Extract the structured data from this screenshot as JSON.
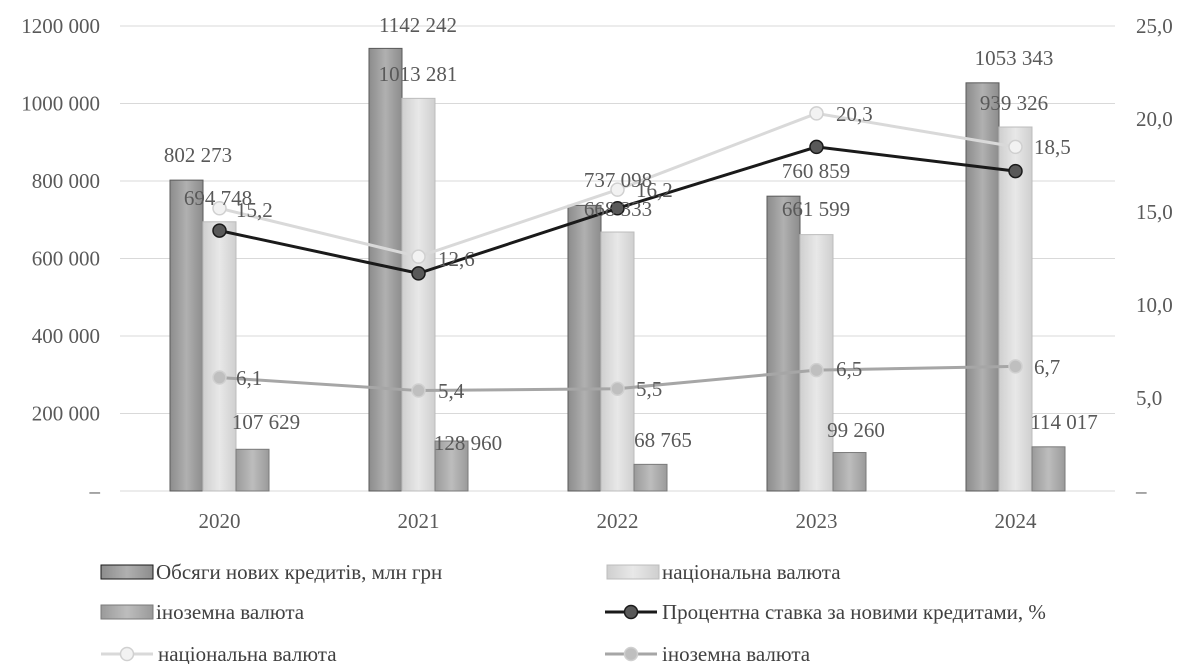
{
  "chart_data": {
    "type": "bar",
    "categories": [
      "2020",
      "2021",
      "2022",
      "2023",
      "2024"
    ],
    "bar_series": [
      {
        "name": "Обсяги нових кредитів, млн грн",
        "values": [
          802273,
          1142242,
          737098,
          760859,
          1053343
        ],
        "labels": [
          "802 273",
          "1142 242",
          "737 098",
          "760 859",
          "1053 343"
        ],
        "color": "#9a9a9a"
      },
      {
        "name": "національна валюта",
        "values": [
          694748,
          1013281,
          668333,
          661599,
          939326
        ],
        "labels": [
          "694 748",
          "1013 281",
          "668 333",
          "661 599",
          "939 326"
        ],
        "color": "#d9d9d9"
      },
      {
        "name": "іноземна валюта",
        "values": [
          107629,
          128960,
          68765,
          99260,
          114017
        ],
        "labels": [
          "107 629",
          "128 960",
          "68 765",
          "99 260",
          "114 017"
        ],
        "color": "#a6a6a6"
      }
    ],
    "line_series": [
      {
        "name": "Процентна ставка за новими кредитами, %",
        "values": [
          14.0,
          11.7,
          15.2,
          18.5,
          17.2
        ],
        "labels": [
          "",
          "",
          "",
          "",
          ""
        ],
        "color": "#1a1a1a",
        "marker_fill": "#595959"
      },
      {
        "name": "національна валюта",
        "values": [
          15.2,
          12.6,
          16.2,
          20.3,
          18.5
        ],
        "labels": [
          "15,2",
          "12,6",
          "16,2",
          "20,3",
          "18,5"
        ],
        "color": "#d9d9d9",
        "marker_fill": "#f2f2f2"
      },
      {
        "name": "іноземна валюта",
        "values": [
          6.1,
          5.4,
          5.5,
          6.5,
          6.7
        ],
        "labels": [
          "6,1",
          "5,4",
          "5,5",
          "6,5",
          "6,7"
        ],
        "color": "#a6a6a6",
        "marker_fill": "#bfbfbf"
      }
    ],
    "y_left": {
      "ylim": [
        0,
        1200000
      ],
      "ticks": [
        "–",
        "200 000",
        "400 000",
        "600 000",
        "800 000",
        "1000 000",
        "1200 000"
      ]
    },
    "y_right": {
      "ylim": [
        0,
        25
      ],
      "ticks": [
        "–",
        "5,0",
        "10,0",
        "15,0",
        "20,0",
        "25,0"
      ]
    },
    "grid": true,
    "legend_placement": "bottom"
  }
}
